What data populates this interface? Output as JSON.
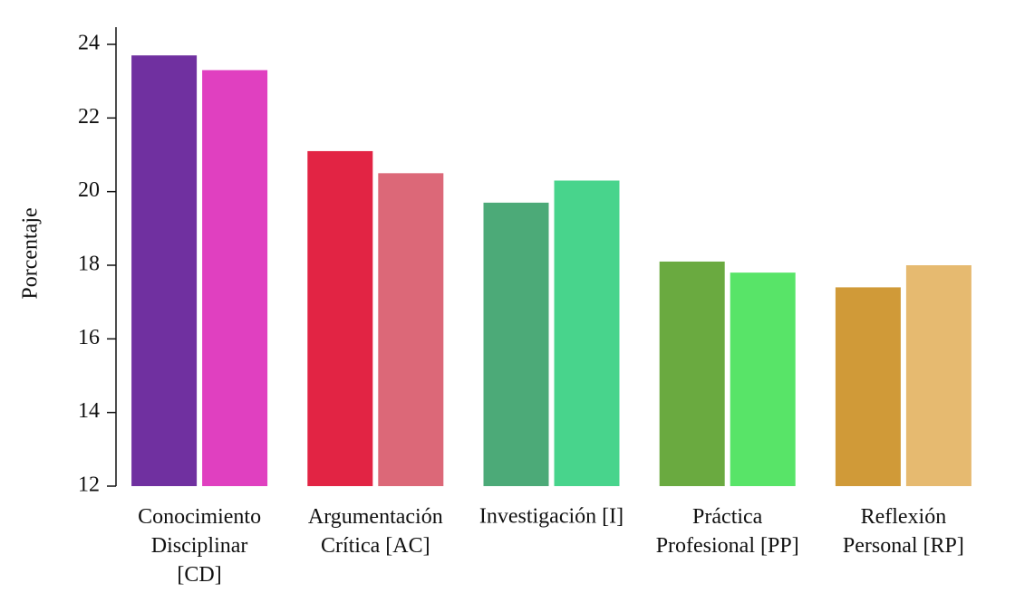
{
  "chart_data": {
    "type": "bar",
    "y_label": "Porcentaje",
    "categories": [
      "Conocimiento\nDisciplinar\n[CD]",
      "Argumentación\nCrítica [AC]",
      "Investigación [I]",
      "Práctica\nProfesional [PP]",
      "Reflexión\nPersonal [RP]"
    ],
    "series": [
      {
        "values": [
          23.7,
          21.1,
          19.7,
          18.1,
          17.4
        ],
        "colors": [
          "#7030a0",
          "#e22444",
          "#4caa78",
          "#6aaa40",
          "#d09a38"
        ]
      },
      {
        "values": [
          23.3,
          20.5,
          20.3,
          17.8,
          18.0
        ],
        "colors": [
          "#e040c0",
          "#dc6878",
          "#48d48c",
          "#58e468",
          "#e6ba70"
        ]
      }
    ],
    "ylim": [
      12,
      24
    ],
    "yticks": [
      12,
      14,
      16,
      18,
      20,
      22,
      24
    ],
    "grid": false
  }
}
